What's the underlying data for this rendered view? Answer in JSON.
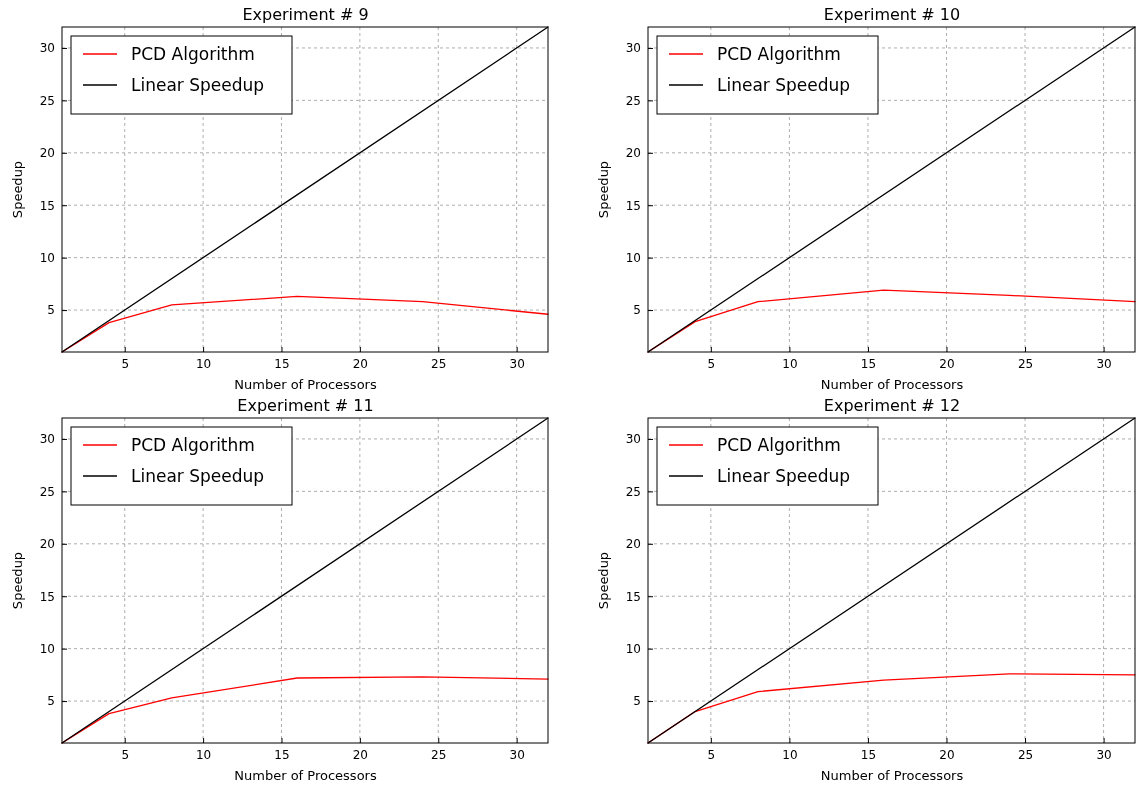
{
  "chart_data": [
    {
      "type": "line",
      "title": "Experiment # 9",
      "xlabel": "Number of Processors",
      "ylabel": "Speedup",
      "xlim": [
        1,
        32
      ],
      "ylim": [
        1,
        32
      ],
      "xticks": [
        5,
        10,
        15,
        20,
        25,
        30
      ],
      "yticks": [
        5,
        10,
        15,
        20,
        25,
        30
      ],
      "grid": true,
      "legend": "top left",
      "series": [
        {
          "name": "PCD Algorithm",
          "color": "#ff0000",
          "x": [
            1,
            4,
            8,
            16,
            24,
            32
          ],
          "values": [
            1,
            3.8,
            5.5,
            6.3,
            5.8,
            4.6
          ]
        },
        {
          "name": "Linear Speedup",
          "color": "#000000",
          "x": [
            1,
            32
          ],
          "values": [
            1,
            32
          ]
        }
      ]
    },
    {
      "type": "line",
      "title": "Experiment # 10",
      "xlabel": "Number of Processors",
      "ylabel": "Speedup",
      "xlim": [
        1,
        32
      ],
      "ylim": [
        1,
        32
      ],
      "xticks": [
        5,
        10,
        15,
        20,
        25,
        30
      ],
      "yticks": [
        5,
        10,
        15,
        20,
        25,
        30
      ],
      "grid": true,
      "legend": "top left",
      "series": [
        {
          "name": "PCD Algorithm",
          "color": "#ff0000",
          "x": [
            1,
            4,
            8,
            16,
            24,
            32
          ],
          "values": [
            1,
            3.9,
            5.8,
            6.9,
            6.4,
            5.8
          ]
        },
        {
          "name": "Linear Speedup",
          "color": "#000000",
          "x": [
            1,
            32
          ],
          "values": [
            1,
            32
          ]
        }
      ]
    },
    {
      "type": "line",
      "title": "Experiment # 11",
      "xlabel": "Number of Processors",
      "ylabel": "Speedup",
      "xlim": [
        1,
        32
      ],
      "ylim": [
        1,
        32
      ],
      "xticks": [
        5,
        10,
        15,
        20,
        25,
        30
      ],
      "yticks": [
        5,
        10,
        15,
        20,
        25,
        30
      ],
      "grid": true,
      "legend": "top left",
      "series": [
        {
          "name": "PCD Algorithm",
          "color": "#ff0000",
          "x": [
            1,
            4,
            8,
            16,
            24,
            32
          ],
          "values": [
            1,
            3.8,
            5.3,
            7.2,
            7.3,
            7.1
          ]
        },
        {
          "name": "Linear Speedup",
          "color": "#000000",
          "x": [
            1,
            32
          ],
          "values": [
            1,
            32
          ]
        }
      ]
    },
    {
      "type": "line",
      "title": "Experiment # 12",
      "xlabel": "Number of Processors",
      "ylabel": "Speedup",
      "xlim": [
        1,
        32
      ],
      "ylim": [
        1,
        32
      ],
      "xticks": [
        5,
        10,
        15,
        20,
        25,
        30
      ],
      "yticks": [
        5,
        10,
        15,
        20,
        25,
        30
      ],
      "grid": true,
      "legend": "top left",
      "series": [
        {
          "name": "PCD Algorithm",
          "color": "#ff0000",
          "x": [
            1,
            4,
            8,
            16,
            24,
            32
          ],
          "values": [
            1,
            4,
            5.9,
            7,
            7.6,
            7.5
          ]
        },
        {
          "name": "Linear Speedup",
          "color": "#000000",
          "x": [
            1,
            32
          ],
          "values": [
            1,
            32
          ]
        }
      ]
    }
  ]
}
